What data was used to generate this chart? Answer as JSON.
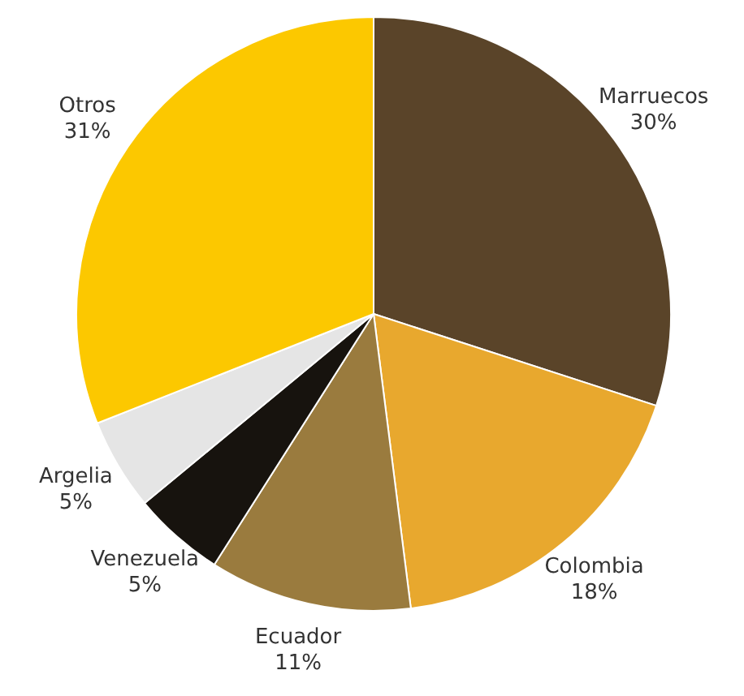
{
  "chart_data": {
    "type": "pie",
    "categories": [
      "Marruecos",
      "Colombia",
      "Ecuador",
      "Venezuela",
      "Argelia",
      "Otros"
    ],
    "values": [
      30,
      18,
      11,
      5,
      5,
      31
    ],
    "value_labels": [
      "30%",
      "18%",
      "11%",
      "5%",
      "5%",
      "31%"
    ],
    "colors": [
      "#5a4429",
      "#e8a82e",
      "#9a7b3e",
      "#17130e",
      "#e5e5e5",
      "#fcc800"
    ],
    "legend": false
  }
}
